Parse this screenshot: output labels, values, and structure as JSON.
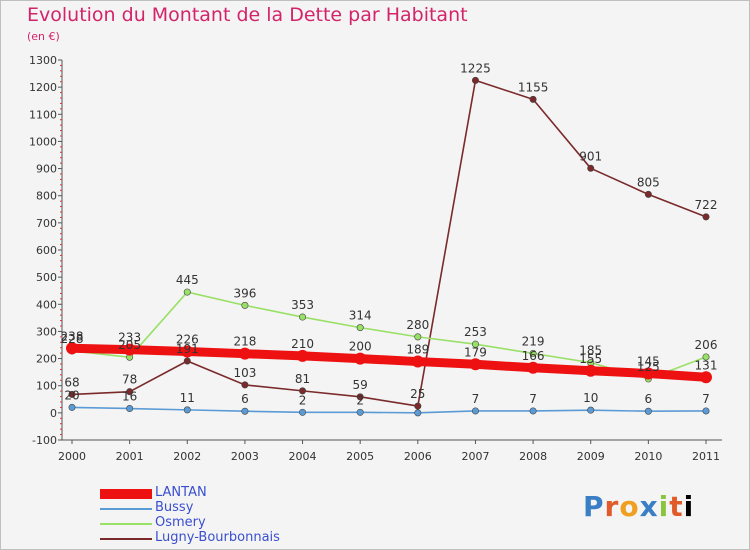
{
  "header": {
    "title": "Evolution du Montant de la Dette par Habitant",
    "subtitle": "(en €)"
  },
  "logo": {
    "text": "Proxiti"
  },
  "chart_data": {
    "type": "line",
    "categories": [
      "2000",
      "2001",
      "2002",
      "2003",
      "2004",
      "2005",
      "2006",
      "2007",
      "2008",
      "2009",
      "2010",
      "2011"
    ],
    "ylim": [
      -100,
      1300
    ],
    "yticks": [
      -100,
      0,
      100,
      200,
      300,
      400,
      500,
      600,
      700,
      800,
      900,
      1000,
      1100,
      1200,
      1300
    ],
    "grid": false,
    "legend": "bottom-left",
    "series": [
      {
        "name": "LANTAN",
        "color": "#ee1111",
        "values": [
          238,
          233,
          226,
          218,
          210,
          200,
          189,
          179,
          166,
          155,
          145,
          131
        ],
        "labels": [
          "238",
          "233",
          "226",
          "218",
          "210",
          "200",
          "189",
          "179",
          "166",
          "155",
          "145",
          "131"
        ]
      },
      {
        "name": "Bussy",
        "color": "#5b9bd5",
        "values": [
          20,
          16,
          11,
          6,
          2,
          2,
          0,
          7,
          7,
          10,
          6,
          7
        ],
        "labels": [
          "20",
          "16",
          "11",
          "6",
          "2",
          "2",
          "",
          "7",
          "7",
          "10",
          "6",
          "7"
        ]
      },
      {
        "name": "Osmery",
        "color": "#99e066",
        "values": [
          228,
          205,
          445,
          396,
          353,
          314,
          280,
          253,
          219,
          185,
          125,
          206
        ],
        "labels": [
          "228",
          "205",
          "445",
          "396",
          "353",
          "314",
          "280",
          "253",
          "219",
          "185",
          "125",
          "206"
        ]
      },
      {
        "name": "Lugny-Bourbonnais",
        "color": "#7a2a2a",
        "values": [
          68,
          78,
          191,
          103,
          81,
          59,
          25,
          1225,
          1155,
          901,
          805,
          722
        ],
        "labels": [
          "68",
          "78",
          "191",
          "103",
          "81",
          "59",
          "25",
          "1225",
          "1155",
          "901",
          "805",
          "722"
        ]
      }
    ]
  }
}
